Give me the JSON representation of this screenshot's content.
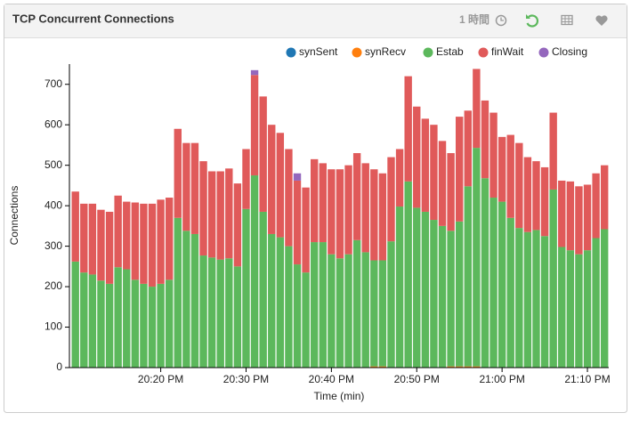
{
  "panel": {
    "title": "TCP Concurrent Connections",
    "time_range": "1 時間"
  },
  "chart_data": {
    "type": "stacked_bar",
    "x_label": "Time (min)",
    "y_label": "Connections",
    "x": [
      1210,
      1211,
      1212,
      1213,
      1214,
      1215,
      1216,
      1217,
      1218,
      1219,
      1220,
      1221,
      1222,
      1223,
      1224,
      1225,
      1226,
      1227,
      1228,
      1229,
      1230,
      1231,
      1232,
      1233,
      1234,
      1235,
      1236,
      1237,
      1238,
      1239,
      1240,
      1241,
      1242,
      1243,
      1244,
      1245,
      1246,
      1247,
      1248,
      1249,
      1250,
      1251,
      1252,
      1253,
      1254,
      1255,
      1256,
      1257,
      1258,
      1259,
      1260,
      1261,
      1262,
      1263,
      1264,
      1265,
      1266,
      1267,
      1268,
      1269,
      1270,
      1271,
      1272
    ],
    "xlim": [
      1209.3,
      1272.5
    ],
    "xticks": [
      {
        "value": 1220,
        "label": "20:20 PM"
      },
      {
        "value": 1230,
        "label": "20:30 PM"
      },
      {
        "value": 1240,
        "label": "20:40 PM"
      },
      {
        "value": 1250,
        "label": "20:50 PM"
      },
      {
        "value": 1260,
        "label": "21:00 PM"
      },
      {
        "value": 1270,
        "label": "21:10 PM"
      }
    ],
    "ylim": [
      0,
      750
    ],
    "yticks": [
      0,
      100,
      200,
      300,
      400,
      500,
      600,
      700
    ],
    "legend": "top-right",
    "series": [
      {
        "name": "synSent",
        "color": "#1f77b4",
        "values": [
          0,
          0,
          0,
          0,
          0,
          0,
          0,
          0,
          0,
          0,
          0,
          0,
          0,
          0,
          0,
          0,
          0,
          0,
          0,
          0,
          0,
          0,
          0,
          0,
          0,
          0,
          0,
          0,
          0,
          0,
          0,
          0,
          0,
          0,
          0,
          0,
          0,
          0,
          0,
          0,
          0,
          0,
          0,
          0,
          0,
          0,
          0,
          0,
          0,
          0,
          0,
          0,
          0,
          0,
          0,
          0,
          0,
          0,
          0,
          0,
          0,
          0,
          0
        ]
      },
      {
        "name": "synRecv",
        "color": "#ff7f0e",
        "values": [
          0,
          0,
          0,
          0,
          0,
          0,
          0,
          0,
          0,
          0,
          0,
          0,
          0,
          0,
          0,
          0,
          0,
          0,
          0,
          0,
          0,
          0,
          0,
          0,
          0,
          0,
          0,
          0,
          0,
          0,
          0,
          0,
          0,
          0,
          0,
          3,
          3,
          0,
          0,
          0,
          0,
          0,
          0,
          0,
          3,
          3,
          3,
          3,
          0,
          0,
          0,
          0,
          0,
          0,
          0,
          0,
          0,
          0,
          0,
          0,
          0,
          0,
          0
        ]
      },
      {
        "name": "Estab",
        "color": "#5cb85c",
        "values": [
          262,
          235,
          230,
          215,
          207,
          248,
          243,
          217,
          207,
          200,
          207,
          217,
          370,
          338,
          330,
          277,
          272,
          267,
          270,
          250,
          392,
          475,
          385,
          330,
          322,
          300,
          255,
          235,
          310,
          310,
          280,
          270,
          280,
          315,
          285,
          262,
          262,
          312,
          398,
          460,
          395,
          385,
          365,
          350,
          335,
          358,
          445,
          540,
          468,
          420,
          410,
          370,
          345,
          335,
          340,
          325,
          440,
          298,
          290,
          280,
          290,
          320,
          342
        ]
      },
      {
        "name": "finWait",
        "color": "#e05a5a",
        "values": [
          173,
          170,
          175,
          175,
          178,
          177,
          167,
          191,
          198,
          205,
          208,
          203,
          220,
          217,
          225,
          233,
          213,
          218,
          222,
          205,
          148,
          248,
          285,
          270,
          258,
          240,
          207,
          210,
          205,
          195,
          210,
          220,
          220,
          215,
          220,
          225,
          215,
          208,
          142,
          260,
          250,
          230,
          235,
          210,
          192,
          259,
          187,
          195,
          192,
          210,
          160,
          205,
          210,
          185,
          170,
          170,
          190,
          164,
          170,
          168,
          162,
          160,
          158
        ]
      },
      {
        "name": "Closing",
        "color": "#9467bd",
        "values": [
          0,
          0,
          0,
          0,
          0,
          0,
          0,
          0,
          0,
          0,
          0,
          0,
          0,
          0,
          0,
          0,
          0,
          0,
          0,
          0,
          0,
          12,
          0,
          0,
          0,
          0,
          18,
          0,
          0,
          0,
          0,
          0,
          0,
          0,
          0,
          0,
          0,
          0,
          0,
          0,
          0,
          0,
          0,
          0,
          0,
          0,
          0,
          0,
          0,
          0,
          0,
          0,
          0,
          0,
          0,
          0,
          0,
          0,
          0,
          0,
          0,
          0,
          0
        ]
      }
    ]
  }
}
